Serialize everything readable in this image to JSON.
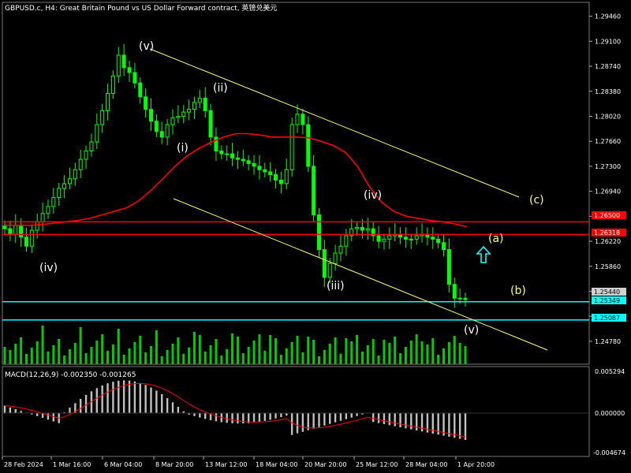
{
  "window": {
    "title": "GBPUSD.c, H4:  Great Britain Pound vs US Dollar Forward contract, 英镑兑美元"
  },
  "indicator": {
    "macd_label": "MACD(12,26,9) -0.002350 -0.001265"
  },
  "colors": {
    "background": "#000000",
    "candle": "#00ff00",
    "grid": "#444444",
    "ma_line": "#ff0000",
    "channel": "#ffff66",
    "level_line": "#ff0000",
    "support_line": "#00ffff",
    "wave_white": "#ffffff",
    "wave_yellow": "#ffff66",
    "macd_hist": "#c0c0c0",
    "macd_signal": "#ff0000",
    "arrow": "#00ffff"
  },
  "chart_data": [
    {
      "type": "candlestick",
      "symbol": "GBPUSD.c",
      "timeframe": "H4",
      "ylim": [
        1.2445,
        1.2966
      ],
      "y_ticks": [
        "1.29460",
        "1.29100",
        "1.28740",
        "1.28380",
        "1.28020",
        "1.27660",
        "1.27300",
        "1.26940",
        "1.26580",
        "1.26220",
        "1.25860",
        "1.25500",
        "1.25140",
        "1.24780"
      ],
      "x_ticks": [
        "28 Feb 2024",
        "1 Mar 16:00",
        "6 Mar 04:00",
        "8 Mar 20:00",
        "13 Mar 12:00",
        "18 Mar 04:00",
        "20 Mar 20:00",
        "25 Mar 12:00",
        "28 Mar 04:00",
        "1 Apr 20:00"
      ],
      "closes": [
        1.264,
        1.2632,
        1.2645,
        1.2628,
        1.2615,
        1.2638,
        1.265,
        1.2662,
        1.2672,
        1.2685,
        1.2698,
        1.2705,
        1.2712,
        1.2725,
        1.274,
        1.2752,
        1.2765,
        1.279,
        1.281,
        1.2835,
        1.286,
        1.289,
        1.2872,
        1.2865,
        1.285,
        1.283,
        1.2812,
        1.2795,
        1.278,
        1.2772,
        1.279,
        1.28,
        1.2802,
        1.2808,
        1.2812,
        1.2822,
        1.2828,
        1.281,
        1.2772,
        1.2752,
        1.2748,
        1.2748,
        1.2742,
        1.274,
        1.2738,
        1.2734,
        1.273,
        1.2725,
        1.2722,
        1.2718,
        1.271,
        1.2705,
        1.2725,
        1.279,
        1.2805,
        1.279,
        1.273,
        1.266,
        1.261,
        1.257,
        1.259,
        1.2605,
        1.2615,
        1.263,
        1.264,
        1.2642,
        1.2638,
        1.264,
        1.263,
        1.2622,
        1.2625,
        1.263,
        1.2632,
        1.2628,
        1.2625,
        1.2625,
        1.263,
        1.2632,
        1.2628,
        1.2625,
        1.262,
        1.261,
        1.256,
        1.254,
        1.254,
        1.2538
      ],
      "ma_values": [
        1.2645,
        1.2645,
        1.2645,
        1.2646,
        1.2648,
        1.265,
        1.2652,
        1.2655,
        1.266,
        1.2665,
        1.267,
        1.268,
        1.2695,
        1.2712,
        1.273,
        1.2745,
        1.2756,
        1.2765,
        1.2772,
        1.2777,
        1.2777,
        1.2775,
        1.2772,
        1.2772,
        1.2772,
        1.2771,
        1.2766,
        1.276,
        1.275,
        1.273,
        1.27,
        1.2678,
        1.2665,
        1.2658,
        1.2655,
        1.2652,
        1.265,
        1.2647,
        1.2643
      ],
      "resistance_levels": {
        "upper": "1.26500",
        "lower": "1.26318"
      },
      "support_levels": {
        "upper": "1.25349",
        "lower": "1.25087"
      },
      "current_price": "1.25440",
      "series": [
        {
          "name": "MACD(12,26,9)",
          "main": -0.00235,
          "signal": -0.001265
        }
      ],
      "macd_axis": [
        "0.005294",
        "0.000000",
        "-0.004674"
      ],
      "wave_labels": [
        "(v)",
        "(ii)",
        "(i)",
        "(iv)",
        "(iii)",
        "(iv)",
        "(v)",
        "(c)",
        "(a)",
        "(b)"
      ]
    }
  ]
}
